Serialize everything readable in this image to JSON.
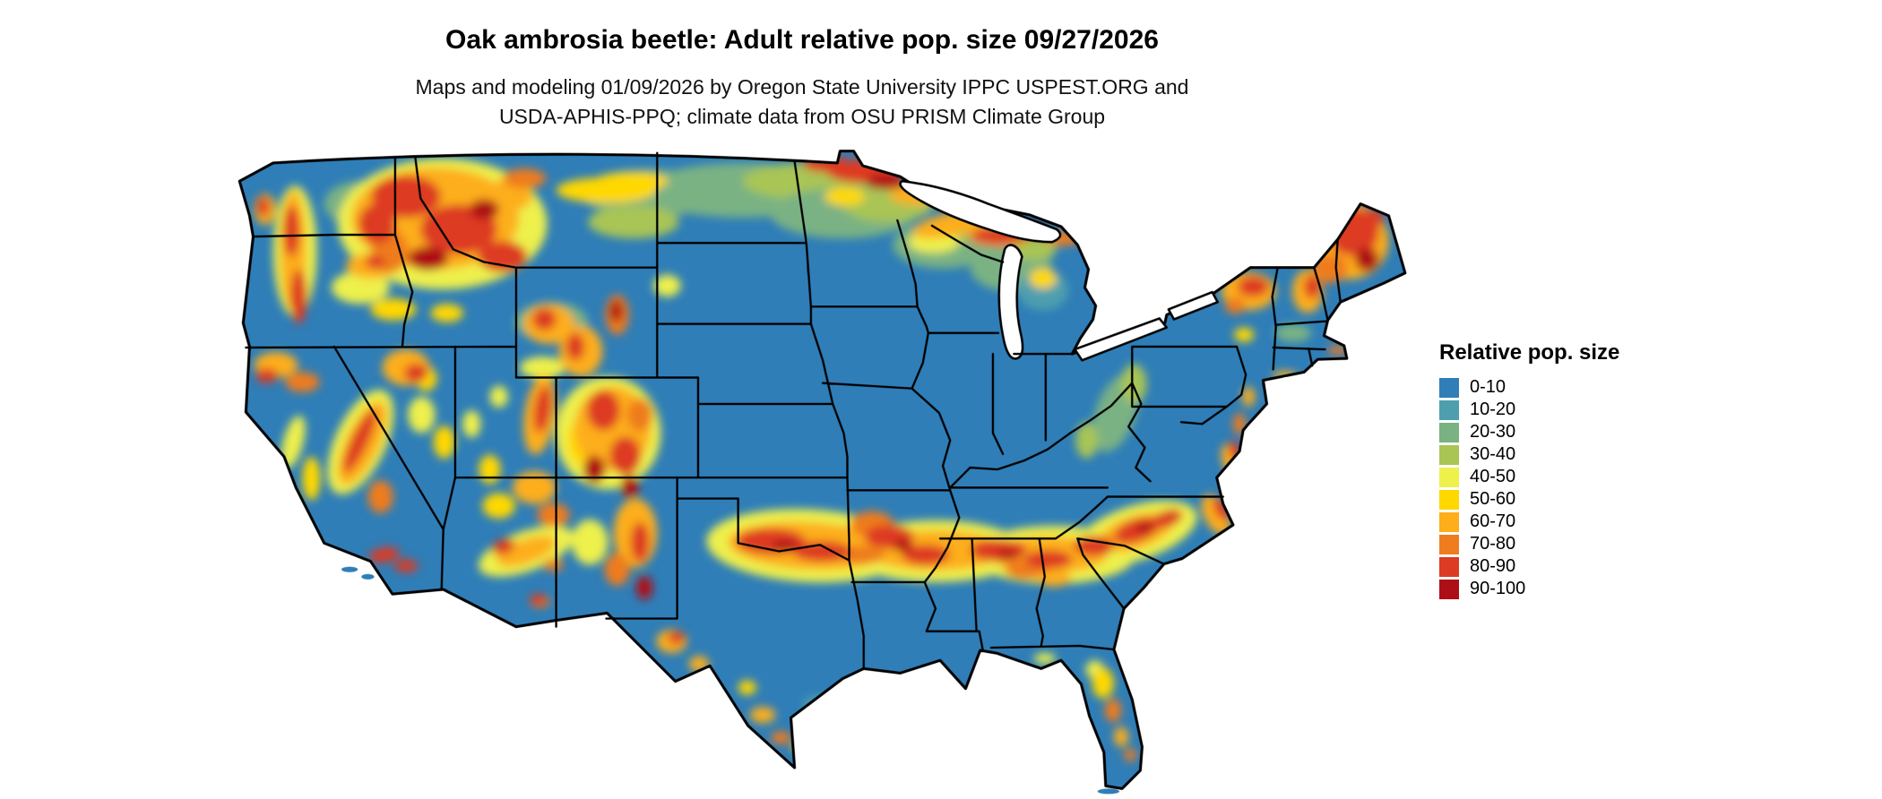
{
  "header": {
    "title": "Oak ambrosia beetle: Adult relative pop. size 09/27/2026",
    "subtitle_line1": "Maps and modeling 01/09/2026 by Oregon State University IPPC USPEST.ORG and",
    "subtitle_line2": "USDA-APHIS-PPQ; climate data from OSU PRISM Climate Group"
  },
  "legend": {
    "title": "Relative pop. size",
    "items": [
      {
        "label": "0-10",
        "color": "#2f7eb8"
      },
      {
        "label": "10-20",
        "color": "#4e9fae"
      },
      {
        "label": "20-30",
        "color": "#7ab283"
      },
      {
        "label": "30-40",
        "color": "#a9c554"
      },
      {
        "label": "40-50",
        "color": "#eef04c"
      },
      {
        "label": "50-60",
        "color": "#ffd800"
      },
      {
        "label": "60-70",
        "color": "#fdae1a"
      },
      {
        "label": "70-80",
        "color": "#ef7c1f"
      },
      {
        "label": "80-90",
        "color": "#dd3b23"
      },
      {
        "label": "90-100",
        "color": "#ae0e15"
      }
    ]
  }
}
